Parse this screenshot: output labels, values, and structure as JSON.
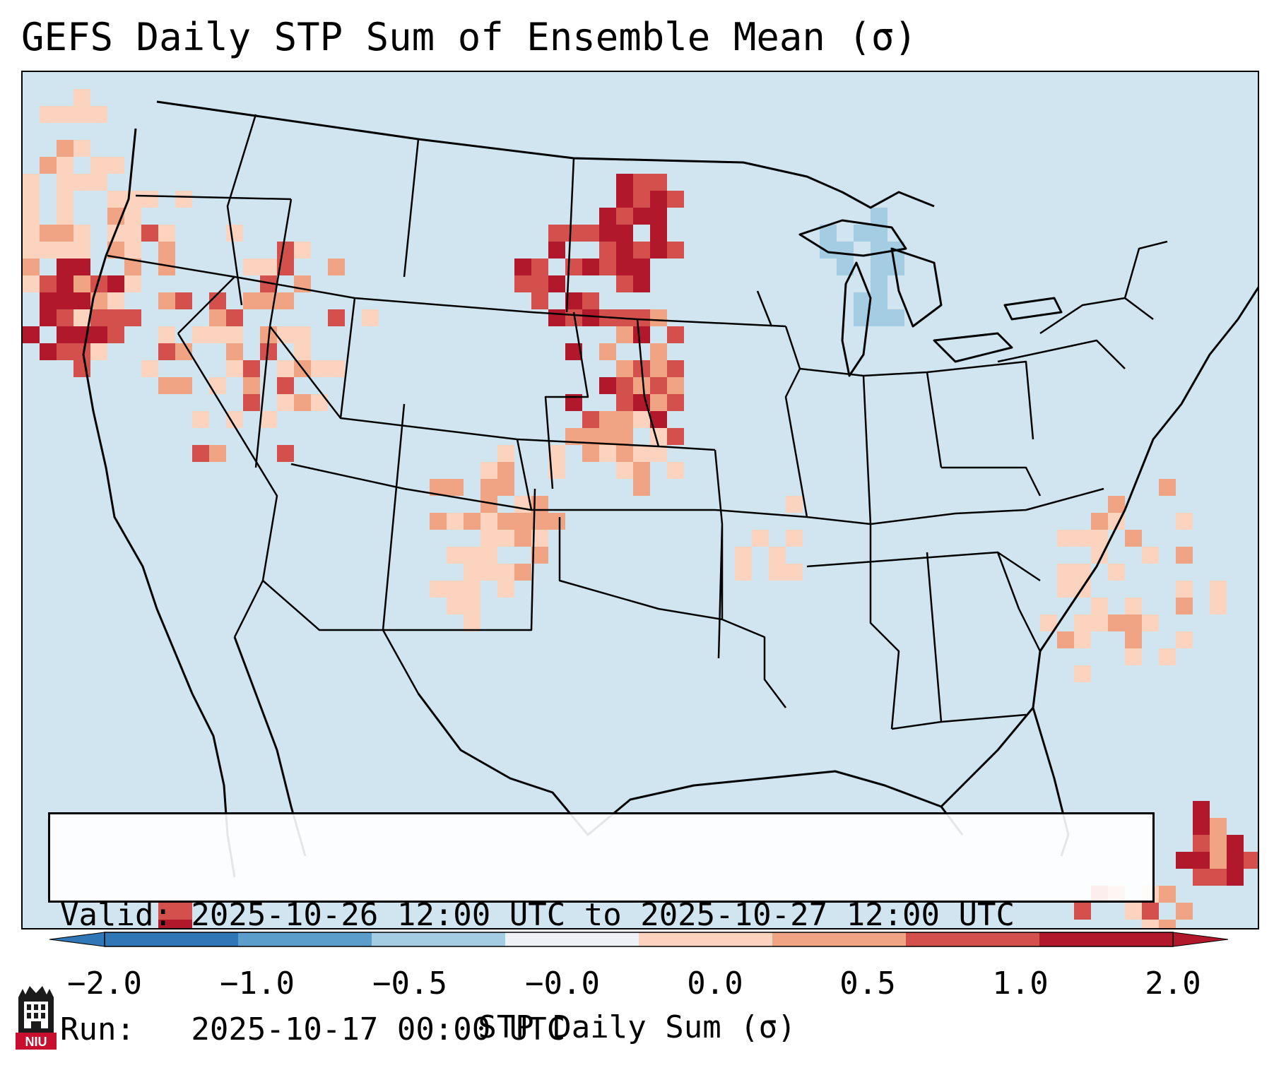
{
  "title": "GEFS Daily STP Sum of Ensemble Mean (σ)",
  "info": {
    "valid_line": "Valid: 2025-10-26 12:00 UTC to 2025-10-27 12:00 UTC",
    "run_line": "Run:   2025-10-17 00:00 UTC"
  },
  "colorbar": {
    "label": "STP Daily Sum (σ)",
    "tick_labels": [
      "−2.0",
      "−1.0",
      "−0.5",
      "−0.0",
      "0.0",
      "0.5",
      "1.0",
      "2.0"
    ],
    "colors": [
      "#2f77b6",
      "#5b9dcb",
      "#a4cde3",
      "#eef2f6",
      "#fcd3bf",
      "#f0a484",
      "#d3504d",
      "#b2182b"
    ],
    "extend": "both"
  },
  "map": {
    "background_color": "#d1e5f0",
    "border_color": "#000000",
    "features": [
      "coastlines",
      "US state borders",
      "Canadian provinces",
      "Mexico"
    ]
  },
  "logo": {
    "icon": "niu-university-logo-icon",
    "text": "NIU",
    "color": "#c8102e"
  }
}
